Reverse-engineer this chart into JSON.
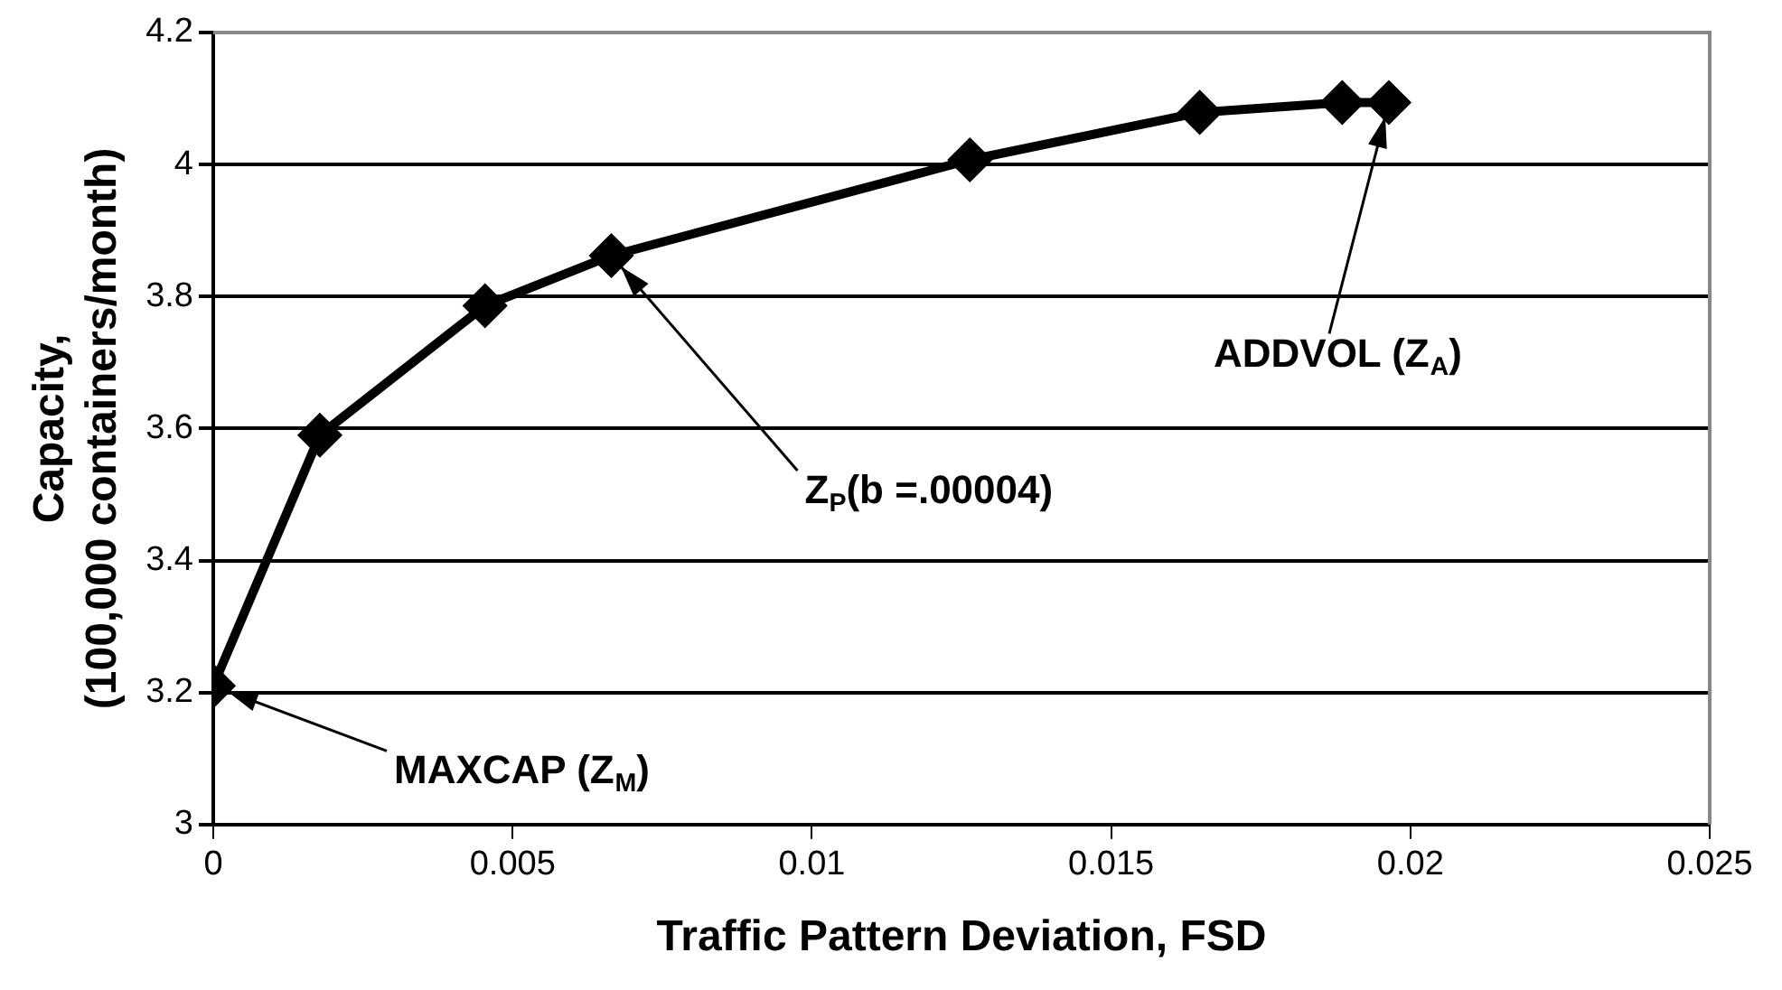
{
  "chart_data": {
    "type": "line",
    "xlabel": "Traffic Pattern Deviation, FSD",
    "ylabel": [
      "Capacity,",
      "(100,000 containers/month)"
    ],
    "series": [
      {
        "color": "#000000",
        "x": [
          0,
          0.00178,
          0.00454,
          0.00665,
          0.01264,
          0.01648,
          0.01886,
          0.01964
        ],
        "values": [
          3.21,
          3.59,
          3.786,
          3.862,
          4.007,
          4.079,
          4.094,
          4.094
        ]
      }
    ],
    "xlim": [
      0,
      0.025
    ],
    "xticks": [
      0,
      0.005,
      0.01,
      0.015,
      0.02,
      0.025
    ],
    "ylim": [
      3,
      4.2
    ],
    "yticks": [
      3,
      3.2,
      3.4,
      3.6,
      3.8,
      4,
      4.2
    ],
    "grid": "y",
    "legend": false,
    "marker": "diamond",
    "line_style": "solid",
    "annotations": [
      {
        "text": "MAXCAP (Z$_{M}$)",
        "x": 0,
        "y": 3.21
      },
      {
        "text": "Z$_{P}$(b =.00004)",
        "x": 0.00665,
        "y": 3.862
      },
      {
        "text": "ADDVOL (Z$_{A}$)",
        "x": 0.01964,
        "y": 4.094
      }
    ]
  }
}
